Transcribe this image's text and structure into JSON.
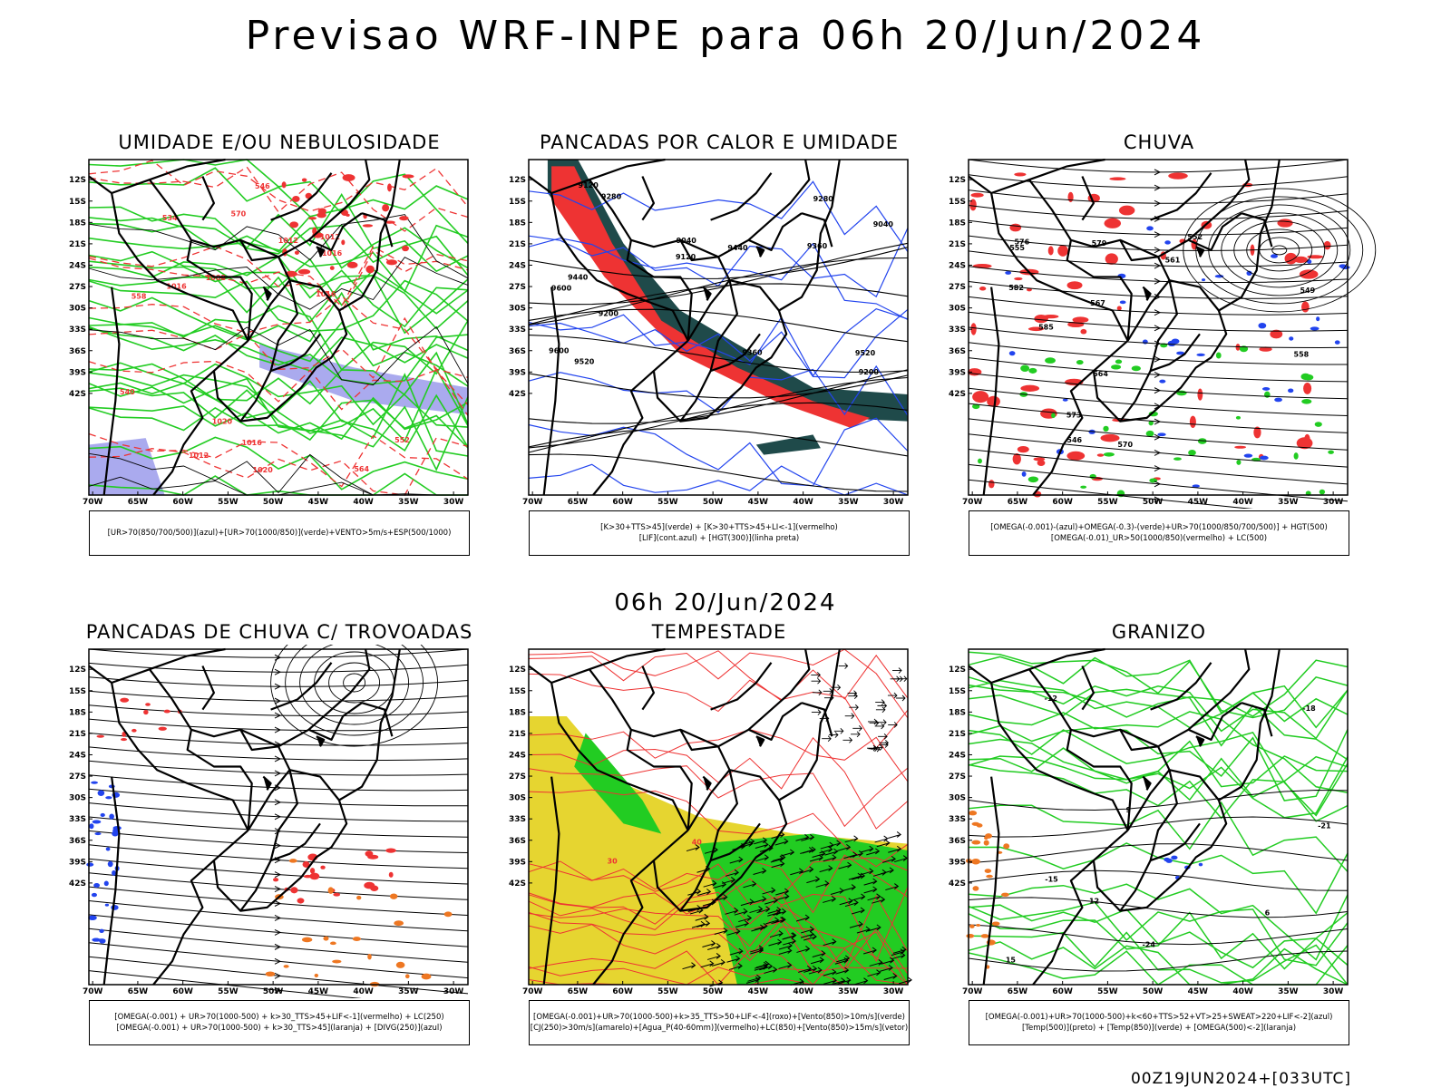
{
  "header": {
    "title": "Previsao WRF-INPE  para 06h 20/Jun/2024",
    "mid_title": "06h 20/Jun/2024",
    "footer_stamp": "00Z19JUN2024+[033UTC]"
  },
  "axes": {
    "lat_ticks": [
      "12S",
      "15S",
      "18S",
      "21S",
      "24S",
      "27S",
      "30S",
      "33S",
      "36S",
      "39S",
      "42S"
    ],
    "lon_ticks": [
      "70W",
      "65W",
      "60W",
      "55W",
      "50W",
      "45W",
      "40W",
      "35W",
      "30W"
    ]
  },
  "colors": {
    "green": "#22cc22",
    "red": "#ee3333",
    "blue": "#2244ee",
    "lavender": "#aaaaee",
    "dark_teal": "#1f4a4a",
    "yellow": "#e6d530",
    "orange": "#ee7722"
  },
  "panels": [
    {
      "title": "UMIDADE E/OU NEBULOSIDADE",
      "legend_lines": [
        "[UR>70(850/700/500)](azul)+[UR>70(1000/850)](verde)+VENTO>5m/s+ESP(500/1000)"
      ],
      "contour_labels": [
        "1012",
        "1016",
        "1020",
        "1016",
        "1012",
        "1016",
        "1020",
        "1016",
        "1012",
        "1008",
        "570",
        "564",
        "558",
        "552",
        "546",
        "540",
        "534"
      ]
    },
    {
      "title": "PANCADAS POR CALOR E UMIDADE",
      "legend_lines": [
        "[K>30+TTS>45](verde) + [K>30+TTS>45+LI<-1](vermelho)",
        "[LIF](cont.azul) + [HGT(300)](linha preta)"
      ],
      "contour_labels": [
        "9600",
        "9520",
        "9440",
        "9360",
        "9280",
        "9200",
        "9120",
        "9040",
        "9600",
        "9520",
        "9440",
        "9360",
        "9280",
        "9200",
        "9120",
        "9040"
      ]
    },
    {
      "title": "CHUVA",
      "legend_lines": [
        "[OMEGA(-0.001)-(azul)+OMEGA(-0.3)-(verde)+UR>70(1000/850/700/500)] + HGT(500)",
        "[OMEGA(-0.01)_UR>50(1000/850)(vermelho) + LC(500)"
      ],
      "contour_labels": [
        "585",
        "582",
        "579",
        "576",
        "573",
        "570",
        "567",
        "564",
        "561",
        "558",
        "555",
        "552",
        "549",
        "546"
      ]
    },
    {
      "title": "PANCADAS DE CHUVA C/ TROVOADAS",
      "legend_lines": [
        "[OMEGA(-0.001) + UR>70(1000-500) + k>30_TTS>45+LIF<-1](vermelho) + LC(250)",
        "[OMEGA(-0.001) + UR>70(1000-500) + k>30_TTS>45](laranja) + [DIVG(250)](azul)"
      ],
      "contour_labels": []
    },
    {
      "title": "TEMPESTADE",
      "legend_lines": [
        "[OMEGA(-0.001)+UR>70(1000-500)+k>35_TTS>50+LIF<-4](roxo)+[Vento(850)>10m/s](verde)",
        "[CJ(250)>30m/s](amarelo)+[Agua_P(40-60mm)](vermelho)+LC(850)+[Vento(850)>15m/s](vetor)"
      ],
      "contour_labels": [
        "40",
        "30"
      ]
    },
    {
      "title": "GRANIZO",
      "legend_lines": [
        "[OMEGA(-0.001)+UR>70(1000-500)+k<60+TTS>52+VT>25+SWEAT>220+LIF<-2](azul)",
        "[Temp(500)](preto) + [Temp(850)](verde) + [OMEGA(500)<-2](laranja)"
      ],
      "contour_labels": [
        "12",
        "15",
        "-12",
        "-15",
        "-18",
        "-21",
        "-24",
        "9",
        "6"
      ]
    }
  ]
}
